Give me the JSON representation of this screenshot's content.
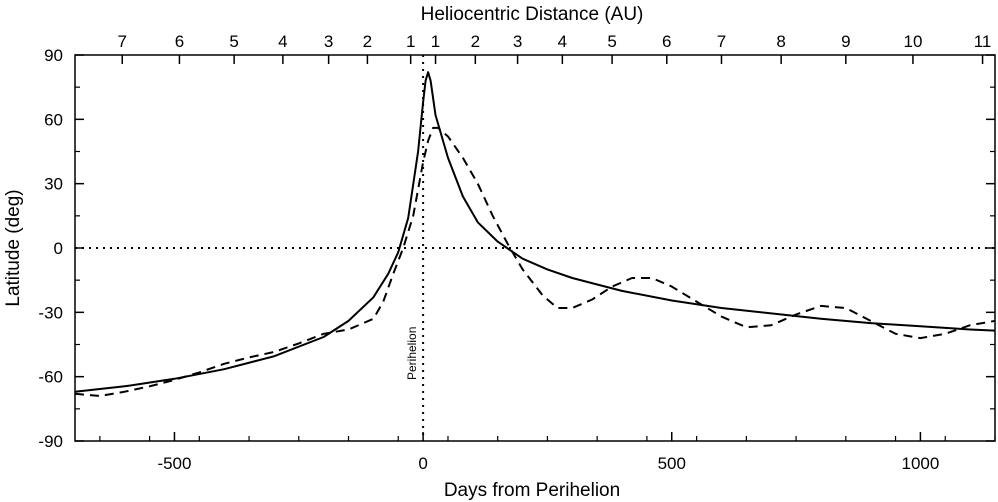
{
  "chart_data": {
    "type": "line",
    "title": "",
    "xlabel": "Days from Perihelion",
    "ylabel": "Latitude (deg)",
    "top_axis_label": "Heliocentric Distance (AU)",
    "xlim": [
      -700,
      1150
    ],
    "ylim": [
      -90,
      90
    ],
    "x_ticks": [
      {
        "value": -500,
        "label": "-500"
      },
      {
        "value": 0,
        "label": "0"
      },
      {
        "value": 500,
        "label": "500"
      },
      {
        "value": 1000,
        "label": "1000"
      }
    ],
    "y_ticks": [
      {
        "value": 90,
        "label": "90"
      },
      {
        "value": 60,
        "label": "60"
      },
      {
        "value": 30,
        "label": "30"
      },
      {
        "value": 0,
        "label": "0"
      },
      {
        "value": -30,
        "label": "-30"
      },
      {
        "value": -60,
        "label": "-60"
      },
      {
        "value": -90,
        "label": "-90"
      }
    ],
    "top_ticks": [
      {
        "day": -605,
        "label": "7"
      },
      {
        "day": -490,
        "label": "6"
      },
      {
        "day": -380,
        "label": "5"
      },
      {
        "day": -282,
        "label": "4"
      },
      {
        "day": -190,
        "label": "3"
      },
      {
        "day": -112,
        "label": "2"
      },
      {
        "day": -25,
        "label": "1"
      },
      {
        "day": 25,
        "label": "1"
      },
      {
        "day": 105,
        "label": "2"
      },
      {
        "day": 190,
        "label": "3"
      },
      {
        "day": 280,
        "label": "4"
      },
      {
        "day": 380,
        "label": "5"
      },
      {
        "day": 490,
        "label": "6"
      },
      {
        "day": 600,
        "label": "7"
      },
      {
        "day": 720,
        "label": "8"
      },
      {
        "day": 850,
        "label": "9"
      },
      {
        "day": 985,
        "label": "10"
      },
      {
        "day": 1125,
        "label": "11"
      }
    ],
    "annotations": [
      {
        "text": "Perihelion",
        "x": 0
      }
    ],
    "reference_lines": [
      {
        "orientation": "horizontal",
        "value": 0,
        "style": "dotted"
      },
      {
        "orientation": "vertical",
        "value": 0,
        "style": "dotted"
      }
    ],
    "series": [
      {
        "name": "solid",
        "style": "solid",
        "points": [
          [
            -700,
            -67
          ],
          [
            -600,
            -64.5
          ],
          [
            -500,
            -61
          ],
          [
            -400,
            -56.5
          ],
          [
            -300,
            -50.5
          ],
          [
            -200,
            -41.5
          ],
          [
            -150,
            -34
          ],
          [
            -100,
            -23
          ],
          [
            -70,
            -12
          ],
          [
            -50,
            -2
          ],
          [
            -30,
            14
          ],
          [
            -10,
            45
          ],
          [
            0,
            68
          ],
          [
            5,
            78
          ],
          [
            10,
            82
          ],
          [
            15,
            78
          ],
          [
            25,
            62
          ],
          [
            50,
            42
          ],
          [
            80,
            24
          ],
          [
            110,
            12
          ],
          [
            150,
            3
          ],
          [
            200,
            -5
          ],
          [
            250,
            -10
          ],
          [
            300,
            -14
          ],
          [
            350,
            -17
          ],
          [
            400,
            -20
          ],
          [
            500,
            -24.5
          ],
          [
            600,
            -28
          ],
          [
            700,
            -30.5
          ],
          [
            800,
            -33
          ],
          [
            900,
            -35
          ],
          [
            1000,
            -36.5
          ],
          [
            1100,
            -38
          ],
          [
            1150,
            -38.5
          ]
        ]
      },
      {
        "name": "dashed",
        "style": "dashed",
        "points": [
          [
            -700,
            -68
          ],
          [
            -650,
            -69
          ],
          [
            -600,
            -67
          ],
          [
            -550,
            -64.5
          ],
          [
            -500,
            -61.5
          ],
          [
            -450,
            -58
          ],
          [
            -400,
            -54
          ],
          [
            -350,
            -51
          ],
          [
            -300,
            -48.5
          ],
          [
            -250,
            -44.5
          ],
          [
            -200,
            -40
          ],
          [
            -150,
            -38
          ],
          [
            -100,
            -33
          ],
          [
            -80,
            -25
          ],
          [
            -60,
            -12
          ],
          [
            -40,
            0
          ],
          [
            -20,
            15
          ],
          [
            0,
            40
          ],
          [
            10,
            50
          ],
          [
            20,
            56
          ],
          [
            30,
            56
          ],
          [
            50,
            52
          ],
          [
            80,
            42
          ],
          [
            110,
            30
          ],
          [
            140,
            15
          ],
          [
            170,
            2
          ],
          [
            200,
            -10
          ],
          [
            240,
            -22
          ],
          [
            270,
            -28
          ],
          [
            300,
            -28
          ],
          [
            340,
            -24
          ],
          [
            380,
            -18
          ],
          [
            420,
            -14
          ],
          [
            460,
            -14
          ],
          [
            500,
            -18
          ],
          [
            550,
            -25
          ],
          [
            600,
            -32
          ],
          [
            650,
            -37
          ],
          [
            700,
            -36
          ],
          [
            750,
            -31
          ],
          [
            800,
            -27
          ],
          [
            850,
            -28
          ],
          [
            900,
            -34
          ],
          [
            950,
            -40
          ],
          [
            1000,
            -42
          ],
          [
            1050,
            -40
          ],
          [
            1100,
            -36
          ],
          [
            1150,
            -34
          ]
        ]
      }
    ]
  }
}
